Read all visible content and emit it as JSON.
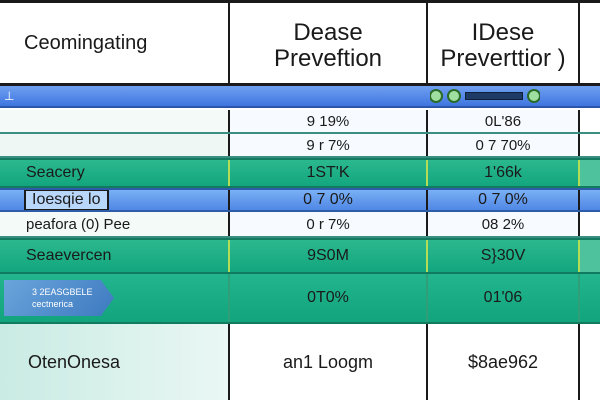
{
  "header": {
    "col1": "Ceomingating",
    "col2_line1": "Dease",
    "col2_line2": "Preveftion",
    "col3_line1": "IDese",
    "col3_line2": "Preverttior )"
  },
  "toolbar": {
    "corner_mark": "⊥",
    "slider_value": null
  },
  "rows": [
    {
      "label": "",
      "col2": "9 19%",
      "col3": "0L'86"
    },
    {
      "label": "",
      "col2": "9 r 7%",
      "col3": "0 7 70%"
    },
    {
      "label": "Seacery",
      "col2": "1ST'K",
      "col3": "1'66k"
    },
    {
      "label": "Ioesqie lo",
      "col2": "0 7 0%",
      "col3": "0 7 0%"
    },
    {
      "label": "peafora (0) Pee",
      "col2": "0 r 7%",
      "col3": "08 2%"
    },
    {
      "label": "Seaevercen",
      "col2": "9S0M",
      "col3": "S}30V"
    },
    {
      "label_line1": "3 2EASGBELE",
      "label_line2": "cectnerica",
      "col2": "0T0%",
      "col3": "01'06"
    }
  ],
  "footer": {
    "col1": "OtenOnesa",
    "col2": "an1 Loogm",
    "col3": "$8ae962"
  },
  "colors": {
    "teal": "#13a67e",
    "blue": "#4f87e6",
    "grid": "#1a1a1a"
  }
}
